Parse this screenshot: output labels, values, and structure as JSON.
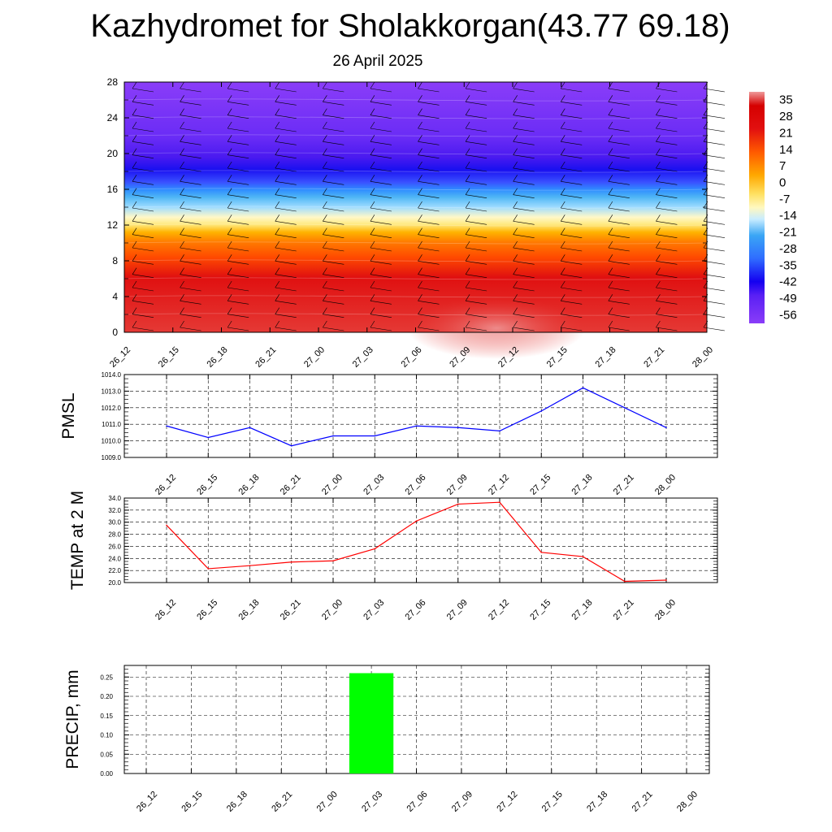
{
  "title": "Kazhydromet for Sholakkorgan(43.77 69.18)",
  "subtitle": "26 April 2025",
  "colors": {
    "pmsl_line": "#0000ff",
    "temp_line": "#ff0000",
    "precip_bar": "#00ff00"
  },
  "chart_data": [
    {
      "type": "heatmap",
      "name": "temperature-wind cross-section",
      "x": [
        "26_12",
        "26_15",
        "26_18",
        "26_21",
        "27_00",
        "27_03",
        "27_06",
        "27_09",
        "27_12",
        "27_15",
        "27_18",
        "27_21",
        "28_00"
      ],
      "yticks": [
        "0",
        "4",
        "8",
        "12",
        "16",
        "20",
        "24",
        "28"
      ],
      "ylim": [
        0,
        28
      ],
      "colorbar": {
        "labels": [
          "35",
          "28",
          "21",
          "14",
          "7",
          "0",
          "-7",
          "-14",
          "-21",
          "-28",
          "-35",
          "-42",
          "-49",
          "-56"
        ],
        "range": [
          -60,
          38
        ],
        "colors": [
          "#ef9a9a",
          "#d50000",
          "#ff5a00",
          "#ffa800",
          "#ffe87c",
          "#fff6b0",
          "#7fd3ff",
          "#29a9f0",
          "#3a7bff",
          "#2b3cff",
          "#1400f0",
          "#6a26f5",
          "#8a3df8"
        ]
      }
    },
    {
      "type": "line",
      "ylabel": "PMSL",
      "x": [
        "26_12",
        "26_15",
        "26_18",
        "26_21",
        "27_00",
        "27_03",
        "27_06",
        "27_09",
        "27_12",
        "27_15",
        "27_18",
        "27_21",
        "28_00"
      ],
      "values": [
        1010.9,
        1010.2,
        1010.8,
        1009.7,
        1010.3,
        1010.3,
        1010.9,
        1010.8,
        1010.6,
        1011.8,
        1013.2,
        1012.0,
        1010.8
      ],
      "ylim": [
        1009.0,
        1014.0
      ],
      "yticks": [
        "1009.0",
        "1010.0",
        "1011.0",
        "1012.0",
        "1013.0",
        "1014.0"
      ]
    },
    {
      "type": "line",
      "ylabel": "TEMP at 2 M",
      "x": [
        "26_12",
        "26_15",
        "26_18",
        "26_21",
        "27_00",
        "27_03",
        "27_06",
        "27_09",
        "27_12",
        "27_15",
        "27_18",
        "27_21",
        "28_00"
      ],
      "values": [
        29.5,
        22.3,
        22.8,
        23.4,
        23.6,
        25.6,
        30.2,
        33.0,
        33.3,
        25.0,
        24.3,
        20.2,
        20.4
      ],
      "ylim": [
        20.0,
        34.0
      ],
      "yticks": [
        "20.0",
        "22.0",
        "24.0",
        "26.0",
        "28.0",
        "30.0",
        "32.0",
        "34.0"
      ]
    },
    {
      "type": "bar",
      "ylabel": "PRECIP, mm",
      "categories": [
        "26_12",
        "26_15",
        "26_18",
        "26_21",
        "27_00",
        "27_03",
        "27_06",
        "27_09",
        "27_12",
        "27_15",
        "27_18",
        "27_21",
        "28_00"
      ],
      "values": [
        0,
        0,
        0,
        0,
        0,
        0.26,
        0,
        0,
        0,
        0,
        0,
        0,
        0
      ],
      "ylim": [
        0,
        0.28
      ],
      "yticks": [
        "0.00",
        "0.05",
        "0.10",
        "0.15",
        "0.20",
        "0.25"
      ]
    }
  ]
}
